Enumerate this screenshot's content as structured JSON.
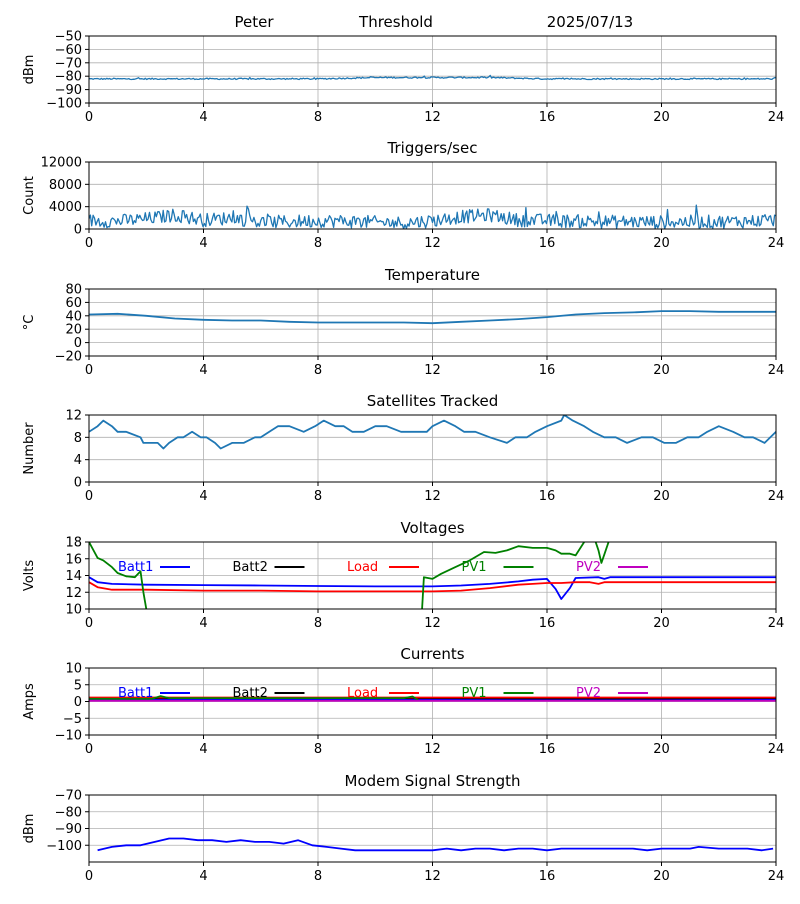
{
  "header": {
    "station": "Peter",
    "mode": "Threshold",
    "date": "2025/07/13"
  },
  "chart_data": [
    {
      "id": "signal",
      "type": "line",
      "title": "",
      "ylabel": "dBm",
      "xlim": [
        0,
        24
      ],
      "ylim": [
        -100,
        -50
      ],
      "xticks": [
        0,
        4,
        8,
        12,
        16,
        20,
        24
      ],
      "yticks": [
        -100,
        -90,
        -80,
        -70,
        -60,
        -50
      ],
      "grid": true,
      "series": [
        {
          "color": "#1f77b4",
          "noise": 0.5,
          "x": [
            0,
            2,
            4,
            6,
            8,
            10,
            12,
            14,
            16,
            18,
            20,
            22,
            24
          ],
          "y": [
            -82,
            -82,
            -82,
            -82,
            -82,
            -81,
            -81,
            -81,
            -82,
            -82,
            -82,
            -82,
            -82
          ]
        }
      ]
    },
    {
      "id": "triggers",
      "type": "line",
      "title": "Triggers/sec",
      "ylabel": "Count",
      "xlim": [
        0,
        24
      ],
      "ylim": [
        0,
        12000
      ],
      "xticks": [
        0,
        4,
        8,
        12,
        16,
        20,
        24
      ],
      "yticks": [
        0,
        4000,
        8000,
        12000
      ],
      "grid": true,
      "series": [
        {
          "color": "#1f77b4",
          "noise": 1200,
          "x": [
            0,
            1,
            2,
            3,
            4,
            5,
            6,
            7,
            8,
            9,
            10,
            11,
            12,
            13,
            14,
            15,
            16,
            17,
            18,
            19,
            20,
            21,
            22,
            23,
            24
          ],
          "y": [
            1500,
            1400,
            1800,
            2500,
            1600,
            2000,
            1200,
            1300,
            1500,
            1400,
            1200,
            1100,
            1500,
            2200,
            2500,
            1600,
            1500,
            1400,
            1300,
            1300,
            1200,
            1300,
            1300,
            1400,
            1600
          ]
        }
      ]
    },
    {
      "id": "temperature",
      "type": "line",
      "title": "Temperature",
      "ylabel": "°C",
      "xlim": [
        0,
        24
      ],
      "ylim": [
        -20,
        80
      ],
      "xticks": [
        0,
        4,
        8,
        12,
        16,
        20,
        24
      ],
      "yticks": [
        -20,
        0,
        20,
        40,
        60,
        80
      ],
      "grid": true,
      "series": [
        {
          "color": "#1f77b4",
          "noise": 0,
          "x": [
            0,
            1,
            2,
            3,
            4,
            5,
            6,
            7,
            8,
            9,
            10,
            11,
            12,
            13,
            14,
            15,
            16,
            17,
            18,
            19,
            20,
            21,
            22,
            23,
            24
          ],
          "y": [
            42,
            43,
            40,
            36,
            34,
            33,
            33,
            31,
            30,
            30,
            30,
            30,
            29,
            31,
            33,
            35,
            38,
            42,
            44,
            45,
            47,
            47,
            46,
            46,
            46
          ]
        }
      ]
    },
    {
      "id": "satellites",
      "type": "line",
      "title": "Satellites Tracked",
      "ylabel": "Number",
      "xlim": [
        0,
        24
      ],
      "ylim": [
        0,
        12
      ],
      "xticks": [
        0,
        4,
        8,
        12,
        16,
        20,
        24
      ],
      "yticks": [
        0,
        4,
        8,
        12
      ],
      "grid": true,
      "series": [
        {
          "color": "#1f77b4",
          "noise": 0,
          "x": [
            0,
            0.3,
            0.5,
            0.8,
            1.0,
            1.3,
            1.8,
            1.9,
            2.4,
            2.6,
            2.8,
            3.1,
            3.3,
            3.6,
            3.9,
            4.1,
            4.4,
            4.6,
            5.0,
            5.4,
            5.8,
            6.0,
            6.3,
            6.6,
            7.0,
            7.5,
            7.9,
            8.2,
            8.6,
            8.9,
            9.2,
            9.6,
            10.0,
            10.4,
            10.9,
            11.4,
            11.8,
            12.0,
            12.4,
            12.8,
            13.1,
            13.5,
            14.0,
            14.6,
            14.9,
            15.3,
            15.6,
            16.0,
            16.5,
            16.6,
            16.9,
            17.3,
            17.6,
            18.0,
            18.4,
            18.8,
            19.3,
            19.7,
            20.1,
            20.5,
            20.9,
            21.3,
            21.6,
            22.0,
            22.5,
            22.9,
            23.2,
            23.6,
            24.0
          ],
          "y": [
            9,
            10,
            11,
            10,
            9,
            9,
            8,
            7,
            7,
            6,
            7,
            8,
            8,
            9,
            8,
            8,
            7,
            6,
            7,
            7,
            8,
            8,
            9,
            10,
            10,
            9,
            10,
            11,
            10,
            10,
            9,
            9,
            10,
            10,
            9,
            9,
            9,
            10,
            11,
            10,
            9,
            9,
            8,
            7,
            8,
            8,
            9,
            10,
            11,
            12,
            11,
            10,
            9,
            8,
            8,
            7,
            8,
            8,
            7,
            7,
            8,
            8,
            9,
            10,
            9,
            8,
            8,
            7,
            9
          ]
        }
      ]
    },
    {
      "id": "voltages",
      "type": "line",
      "title": "Voltages",
      "ylabel": "Volts",
      "xlim": [
        0,
        24
      ],
      "ylim": [
        10,
        18
      ],
      "xticks": [
        0,
        4,
        8,
        12,
        16,
        20,
        24
      ],
      "yticks": [
        10,
        12,
        14,
        16,
        18
      ],
      "grid": true,
      "legend": "top",
      "series": [
        {
          "name": "Batt1",
          "color": "#0000ff",
          "x": [
            0,
            0.3,
            0.8,
            2,
            4,
            6,
            8,
            10,
            12,
            13,
            14,
            15,
            15.5,
            16,
            16.3,
            16.5,
            16.8,
            17,
            17.8,
            18,
            18.2,
            20,
            22,
            24
          ],
          "y": [
            13.8,
            13.2,
            13.0,
            12.9,
            12.85,
            12.8,
            12.75,
            12.7,
            12.7,
            12.8,
            13.0,
            13.3,
            13.5,
            13.6,
            12.4,
            11.2,
            12.5,
            13.7,
            13.8,
            13.6,
            13.8,
            13.8,
            13.8,
            13.8
          ]
        },
        {
          "name": "Batt2",
          "color": "#000000",
          "x": [],
          "y": []
        },
        {
          "name": "Load",
          "color": "#ff0000",
          "x": [
            0,
            0.3,
            0.8,
            2,
            4,
            6,
            8,
            10,
            12,
            13,
            14,
            15,
            15.5,
            16,
            16.5,
            17,
            17.5,
            17.8,
            18,
            18.2,
            20,
            22,
            24
          ],
          "y": [
            13.2,
            12.6,
            12.3,
            12.3,
            12.2,
            12.2,
            12.1,
            12.1,
            12.1,
            12.2,
            12.5,
            12.9,
            13.0,
            13.1,
            13.1,
            13.2,
            13.2,
            13.0,
            13.2,
            13.2,
            13.2,
            13.2,
            13.2
          ]
        },
        {
          "name": "PV1",
          "color": "#008000",
          "x": [
            0,
            0.3,
            0.5,
            0.8,
            1.0,
            1.3,
            1.6,
            1.8,
            1.9,
            2.0,
            2.1,
            11.6,
            11.7,
            12.0,
            12.3,
            12.8,
            13.3,
            13.8,
            14.2,
            14.6,
            15.0,
            15.5,
            16.0,
            16.3,
            16.5,
            16.8,
            17.0,
            17.3,
            17.6,
            17.8,
            17.9,
            18.0,
            18.2
          ],
          "y": [
            18,
            16.1,
            15.8,
            15.0,
            14.3,
            13.9,
            13.8,
            14.5,
            12.0,
            10.0,
            8.0,
            8.0,
            13.8,
            13.6,
            14.2,
            15.0,
            15.8,
            16.8,
            16.7,
            17.0,
            17.5,
            17.3,
            17.3,
            17.0,
            16.6,
            16.6,
            16.4,
            18.0,
            19.0,
            17.0,
            15.5,
            16.5,
            18.5
          ]
        },
        {
          "name": "PV2",
          "color": "#bf00bf",
          "x": [],
          "y": []
        }
      ]
    },
    {
      "id": "currents",
      "type": "line",
      "title": "Currents",
      "ylabel": "Amps",
      "xlim": [
        0,
        24
      ],
      "ylim": [
        -10,
        10
      ],
      "xticks": [
        0,
        4,
        8,
        12,
        16,
        20,
        24
      ],
      "yticks": [
        -10,
        -5,
        0,
        5,
        10
      ],
      "grid": true,
      "legend": "top",
      "series": [
        {
          "name": "Batt1",
          "color": "#0000ff",
          "x": [
            0,
            24
          ],
          "y": [
            0.5,
            0.5
          ]
        },
        {
          "name": "Batt2",
          "color": "#000000",
          "x": [
            0,
            4,
            8,
            12,
            16,
            20,
            24
          ],
          "y": [
            1.0,
            1.0,
            1.0,
            1.0,
            0.9,
            0.9,
            1.0
          ]
        },
        {
          "name": "Load",
          "color": "#ff0000",
          "x": [
            0,
            24
          ],
          "y": [
            1.2,
            1.2
          ]
        },
        {
          "name": "PV1",
          "color": "#008000",
          "x": [
            0,
            2.2,
            2.5,
            2.8,
            4,
            8,
            11.0,
            11.3,
            11.5
          ],
          "y": [
            0.8,
            0.8,
            1.6,
            1.0,
            1.0,
            1.0,
            1.0,
            1.5,
            0.4
          ]
        },
        {
          "name": "PV2",
          "color": "#bf00bf",
          "x": [
            0,
            24
          ],
          "y": [
            0.2,
            0.2
          ]
        }
      ]
    },
    {
      "id": "modem",
      "type": "line",
      "title": "Modem Signal Strength",
      "ylabel": "dBm",
      "xlim": [
        0,
        24
      ],
      "ylim": [
        -110,
        -70
      ],
      "xticks": [
        0,
        4,
        8,
        12,
        16,
        20,
        24
      ],
      "yticks": [
        -100,
        -90,
        -80,
        -70
      ],
      "grid": true,
      "series": [
        {
          "color": "#0000ff",
          "x": [
            0.3,
            0.8,
            1.3,
            1.8,
            2.3,
            2.8,
            3.3,
            3.8,
            4.3,
            4.8,
            5.3,
            5.8,
            6.3,
            6.8,
            7.3,
            7.8,
            8.3,
            8.8,
            9.3,
            10,
            11,
            12,
            12.5,
            13,
            13.5,
            14,
            14.5,
            15,
            15.5,
            16,
            16.5,
            17,
            18,
            19,
            19.5,
            20,
            21,
            21.3,
            22,
            23,
            23.5,
            23.9
          ],
          "y": [
            -103,
            -101,
            -100,
            -100,
            -98,
            -96,
            -96,
            -97,
            -97,
            -98,
            -97,
            -98,
            -98,
            -99,
            -97,
            -100,
            -101,
            -102,
            -103,
            -103,
            -103,
            -103,
            -102,
            -103,
            -102,
            -102,
            -103,
            -102,
            -102,
            -103,
            -102,
            -102,
            -102,
            -102,
            -103,
            -102,
            -102,
            -101,
            -102,
            -102,
            -103,
            -102
          ]
        }
      ]
    }
  ]
}
